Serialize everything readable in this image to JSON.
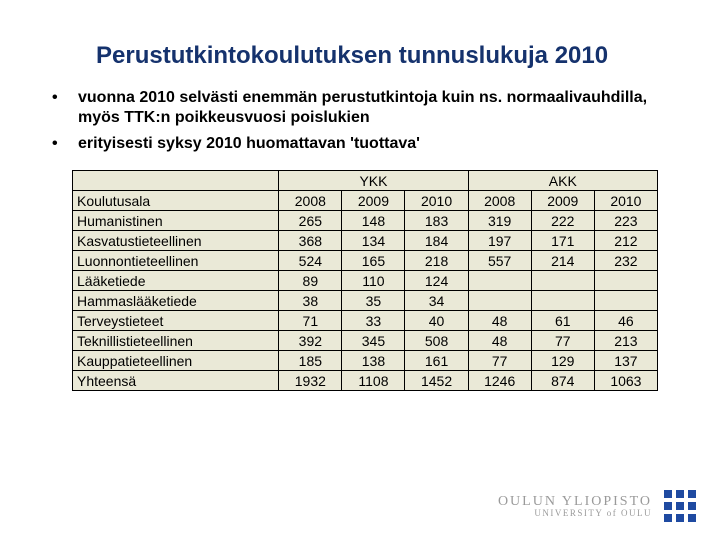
{
  "title": "Perustutkintokoulutuksen tunnuslukuja 2010",
  "bullets": [
    "vuonna 2010  selvästi enemmän perustutkintoja kuin ns. normaalivauhdilla,  myös TTK:n poikkeusvuosi poislukien",
    "erityisesti syksy 2010 huomattavan  'tuottava'"
  ],
  "table": {
    "type": "table",
    "background_color": "#eae9d7",
    "grid_color": "#000000",
    "font_size": 14,
    "label_column": "Koulutusala",
    "groups": [
      {
        "name": "YKK",
        "years": [
          "2008",
          "2009",
          "2010"
        ]
      },
      {
        "name": "AKK",
        "years": [
          "2008",
          "2009",
          "2010"
        ]
      }
    ],
    "columns_flat": [
      "2008",
      "2009",
      "2010",
      "2008",
      "2009",
      "2010"
    ],
    "col_widths": {
      "label": 170,
      "num": 52
    },
    "rows": [
      {
        "label": "Humanistinen",
        "values": [
          "265",
          "148",
          "183",
          "319",
          "222",
          "223"
        ]
      },
      {
        "label": "Kasvatustieteellinen",
        "values": [
          "368",
          "134",
          "184",
          "197",
          "171",
          "212"
        ]
      },
      {
        "label": "Luonnontieteellinen",
        "values": [
          "524",
          "165",
          "218",
          "557",
          "214",
          "232"
        ]
      },
      {
        "label": "Lääketiede",
        "values": [
          "89",
          "110",
          "124",
          "",
          "",
          ""
        ]
      },
      {
        "label": "Hammaslääketiede",
        "values": [
          "38",
          "35",
          "34",
          "",
          "",
          ""
        ]
      },
      {
        "label": "Terveystieteet",
        "values": [
          "71",
          "33",
          "40",
          "48",
          "61",
          "46"
        ]
      },
      {
        "label": "Teknillistieteellinen",
        "values": [
          "392",
          "345",
          "508",
          "48",
          "77",
          "213"
        ]
      },
      {
        "label": "Kauppatieteellinen",
        "values": [
          "185",
          "138",
          "161",
          "77",
          "129",
          "137"
        ]
      },
      {
        "label": "Yhteensä",
        "values": [
          "1932",
          "1108",
          "1452",
          "1246",
          "874",
          "1063"
        ]
      }
    ]
  },
  "footer": {
    "line1": "OULUN YLIOPISTO",
    "line2": "UNIVERSITY of OULU",
    "logo_color": "#1f4aa1"
  }
}
